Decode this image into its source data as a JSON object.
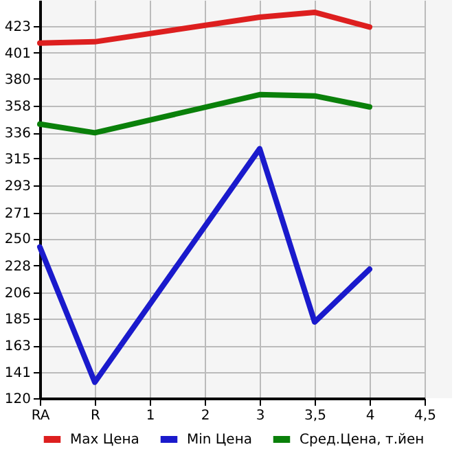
{
  "chart_data": {
    "type": "line",
    "categories": [
      "RA",
      "R",
      "1",
      "2",
      "3",
      "3,5",
      "4",
      "4,5"
    ],
    "series": [
      {
        "name": "Max Цена",
        "color": "#dd1f1f",
        "values": [
          409,
          410,
          null,
          null,
          430,
          434,
          422,
          null
        ]
      },
      {
        "name": "Min Цена",
        "color": "#1a1acc",
        "values": [
          243,
          133,
          null,
          null,
          323,
          182,
          225,
          null
        ]
      },
      {
        "name": "Сред.Цена, т.йен",
        "color": "#0a800a",
        "values": [
          343,
          336,
          null,
          null,
          367,
          366,
          357,
          null
        ]
      }
    ],
    "ylim": [
      120,
      444
    ],
    "yticks": [
      120,
      141,
      163,
      185,
      206,
      228,
      250,
      271,
      293,
      315,
      336,
      358,
      380,
      401,
      423
    ],
    "grid": true,
    "legend": "bottom",
    "line_style": "solid",
    "marker": "none"
  }
}
